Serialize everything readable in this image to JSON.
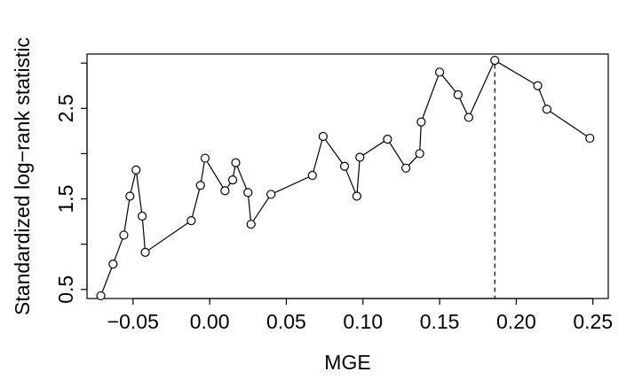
{
  "chart_data": {
    "type": "scatter",
    "title": "",
    "xlabel": "MGE",
    "ylabel": "Standardized log−rank statistic",
    "xlim": [
      -0.08,
      0.26
    ],
    "ylim": [
      0.4,
      3.1
    ],
    "x_ticks": [
      -0.05,
      0.0,
      0.05,
      0.1,
      0.15,
      0.2,
      0.25
    ],
    "x_tick_labels": [
      "−0.05",
      "0.00",
      "0.05",
      "0.10",
      "0.15",
      "0.20",
      "0.25"
    ],
    "y_ticks": [
      0.5,
      1.5,
      2.5
    ],
    "y_tick_labels": [
      "0.5",
      "1.5",
      "2.5"
    ],
    "y_minor_ticks": [
      1.0,
      2.0,
      3.0
    ],
    "grid": false,
    "connect_points": true,
    "vline": {
      "x": 0.186,
      "style": "dashed"
    },
    "series": [
      {
        "x": [
          -0.071,
          -0.063,
          -0.056,
          -0.052,
          -0.048,
          -0.044,
          -0.042,
          -0.012,
          -0.006,
          -0.003,
          0.01,
          0.015,
          0.017,
          0.025,
          0.027,
          0.04,
          0.067,
          0.074,
          0.088,
          0.096,
          0.098,
          0.116,
          0.128,
          0.137,
          0.138,
          0.15,
          0.162,
          0.169,
          0.186,
          0.214,
          0.22,
          0.248
        ],
        "y": [
          0.43,
          0.78,
          1.1,
          1.53,
          1.82,
          1.31,
          0.91,
          1.26,
          1.65,
          1.95,
          1.59,
          1.71,
          1.9,
          1.57,
          1.22,
          1.55,
          1.76,
          2.19,
          1.86,
          1.53,
          1.96,
          2.16,
          1.84,
          2.0,
          2.35,
          2.9,
          2.65,
          2.4,
          3.03,
          2.75,
          2.49,
          2.17
        ]
      }
    ]
  }
}
